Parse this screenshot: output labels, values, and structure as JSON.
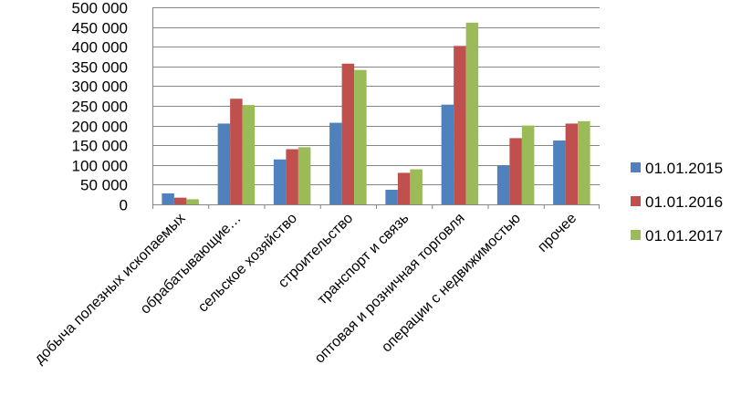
{
  "chart_data": {
    "type": "bar",
    "title": "",
    "xlabel": "",
    "ylabel": "",
    "ylim": [
      0,
      500000
    ],
    "ytick_step": 50000,
    "yticks": [
      "0",
      "50 000",
      "100 000",
      "150 000",
      "200 000",
      "250 000",
      "300 000",
      "350 000",
      "400 000",
      "450 000",
      "500 000"
    ],
    "grid": true,
    "legend_position": "right",
    "categories": [
      "добыча полезных ископаемых",
      "обрабатывающие…",
      "сельское хозяйство",
      "строительство",
      "транспорт и связь",
      "оптовая и розничная торговля",
      "операции с недвижимостью",
      "прочее"
    ],
    "series": [
      {
        "name": "01.01.2015",
        "color": "#4F81BD",
        "values": [
          28000,
          205000,
          114000,
          207000,
          37000,
          253000,
          99000,
          162000
        ]
      },
      {
        "name": "01.01.2016",
        "color": "#C0504D",
        "values": [
          17000,
          268000,
          140000,
          357000,
          80000,
          402000,
          168000,
          205000
        ]
      },
      {
        "name": "01.01.2017",
        "color": "#9BBB59",
        "values": [
          13000,
          252000,
          145000,
          341000,
          89000,
          461000,
          200000,
          211000
        ]
      }
    ]
  }
}
